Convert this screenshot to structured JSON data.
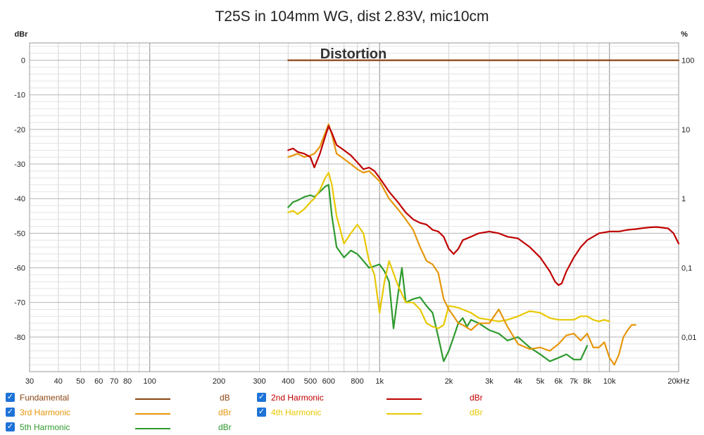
{
  "chart_data": {
    "type": "line",
    "title": "T25S in 104mm WG, dist 2.83V, mic10cm",
    "annotation": "Distortion",
    "x_axis": {
      "scale": "log",
      "range": [
        30,
        20000
      ],
      "tick_labels": [
        {
          "v": 30,
          "label": "30"
        },
        {
          "v": 40,
          "label": "40"
        },
        {
          "v": 50,
          "label": "50"
        },
        {
          "v": 60,
          "label": "60"
        },
        {
          "v": 70,
          "label": "70"
        },
        {
          "v": 80,
          "label": "80"
        },
        {
          "v": 100,
          "label": "100"
        },
        {
          "v": 200,
          "label": "200"
        },
        {
          "v": 300,
          "label": "300"
        },
        {
          "v": 400,
          "label": "400"
        },
        {
          "v": 500,
          "label": "500"
        },
        {
          "v": 600,
          "label": "600"
        },
        {
          "v": 800,
          "label": "800"
        },
        {
          "v": 1000,
          "label": "1k"
        },
        {
          "v": 2000,
          "label": "2k"
        },
        {
          "v": 3000,
          "label": "3k"
        },
        {
          "v": 4000,
          "label": "4k"
        },
        {
          "v": 5000,
          "label": "5k"
        },
        {
          "v": 6000,
          "label": "6k"
        },
        {
          "v": 7000,
          "label": "7k"
        },
        {
          "v": 8000,
          "label": "8k"
        },
        {
          "v": 10000,
          "label": "10k"
        },
        {
          "v": 20000,
          "label": "20kHz"
        }
      ]
    },
    "y_left": {
      "unit": "dBr",
      "range": [
        -90,
        5
      ],
      "ticks": [
        0,
        -10,
        -20,
        -30,
        -40,
        -50,
        -60,
        -70,
        -80
      ]
    },
    "y_right": {
      "unit": "%",
      "scale": "log",
      "tick_labels": [
        {
          "v": 100,
          "label": "100"
        },
        {
          "v": 10,
          "label": "10"
        },
        {
          "v": 1,
          "label": "1"
        },
        {
          "v": 0.1,
          "label": "0,1"
        },
        {
          "v": 0.01,
          "label": "0,01"
        }
      ]
    },
    "grid": true,
    "legend_position": "bottom",
    "series": [
      {
        "name": "Fundamental",
        "unit": "dB",
        "color": "#8b4513",
        "x": [
          400,
          20000
        ],
        "y": [
          0,
          0
        ]
      },
      {
        "name": "2nd Harmonic",
        "unit": "dBr",
        "color": "#c00000",
        "x": [
          400,
          420,
          440,
          470,
          500,
          520,
          550,
          580,
          600,
          620,
          650,
          700,
          750,
          800,
          850,
          900,
          950,
          1000,
          1100,
          1200,
          1300,
          1400,
          1500,
          1600,
          1700,
          1800,
          1900,
          2000,
          2100,
          2200,
          2300,
          2500,
          2700,
          3000,
          3300,
          3600,
          4000,
          4500,
          5000,
          5500,
          5800,
          6000,
          6200,
          6500,
          7000,
          7500,
          8000,
          9000,
          10000,
          11000,
          12000,
          13000,
          14000,
          15000,
          16000,
          17000,
          18000,
          19000,
          20000
        ],
        "y": [
          -26,
          -25.5,
          -26.5,
          -27,
          -28,
          -31,
          -27,
          -22,
          -19,
          -21,
          -24.5,
          -26,
          -27.5,
          -29.5,
          -31.5,
          -31,
          -32,
          -34,
          -38,
          -41,
          -44,
          -46,
          -47,
          -47.5,
          -49,
          -49.5,
          -51,
          -54.5,
          -56,
          -54.5,
          -52,
          -51,
          -50,
          -49.5,
          -50,
          -51,
          -51.5,
          -54,
          -57,
          -61,
          -64,
          -65,
          -64.5,
          -61,
          -57,
          -54,
          -52,
          -50,
          -49.5,
          -49.5,
          -49,
          -48.8,
          -48.5,
          -48.3,
          -48.2,
          -48.4,
          -48.6,
          -50,
          -53
        ]
      },
      {
        "name": "3rd Harmonic",
        "unit": "dBr",
        "color": "#e6960a",
        "x": [
          400,
          420,
          440,
          470,
          500,
          520,
          550,
          580,
          600,
          620,
          650,
          700,
          750,
          800,
          850,
          900,
          950,
          1000,
          1100,
          1200,
          1300,
          1400,
          1500,
          1600,
          1700,
          1800,
          1900,
          2000,
          2100,
          2200,
          2300,
          2500,
          2700,
          3000,
          3300,
          3600,
          4000,
          4500,
          5000,
          5500,
          6000,
          6500,
          7000,
          7500,
          8000,
          8500,
          9000,
          9500,
          10000,
          10500,
          11000,
          11500,
          12000,
          12500,
          13000
        ],
        "y": [
          -28,
          -27.5,
          -27,
          -28,
          -27.5,
          -27,
          -25,
          -21,
          -18.5,
          -21.5,
          -27,
          -28.5,
          -30,
          -31.5,
          -32.5,
          -32,
          -33.5,
          -35,
          -40,
          -43,
          -46,
          -49,
          -54,
          -58,
          -59,
          -61.5,
          -69,
          -72,
          -74,
          -76,
          -76.5,
          -78,
          -76,
          -76,
          -72,
          -77,
          -82,
          -83.5,
          -83,
          -84,
          -82,
          -79.5,
          -79,
          -81,
          -79,
          -83,
          -83,
          -81.5,
          -86,
          -88,
          -85,
          -80,
          -78,
          -76.5,
          -76.5
        ]
      },
      {
        "name": "4th Harmonic",
        "unit": "dBr",
        "color": "#e8c800",
        "x": [
          400,
          420,
          440,
          470,
          500,
          520,
          550,
          580,
          600,
          620,
          650,
          700,
          750,
          800,
          850,
          880,
          900,
          950,
          1000,
          1050,
          1100,
          1200,
          1300,
          1400,
          1500,
          1600,
          1700,
          1800,
          1900,
          2000,
          2200,
          2500,
          2700,
          3000,
          3300,
          3600,
          4000,
          4500,
          5000,
          5500,
          6000,
          6500,
          7000,
          7500,
          8000,
          8500,
          9000,
          9500,
          10000
        ],
        "y": [
          -44,
          -43.5,
          -44.5,
          -43,
          -41,
          -40,
          -37.5,
          -34,
          -32.5,
          -36,
          -45,
          -53,
          -50,
          -47.5,
          -50,
          -55,
          -58,
          -62,
          -73,
          -64,
          -58,
          -65,
          -70,
          -70,
          -72,
          -76,
          -77,
          -77.5,
          -76.5,
          -71,
          -71.5,
          -73,
          -74.5,
          -75,
          -75.5,
          -75,
          -74,
          -72.5,
          -73,
          -74.5,
          -75,
          -75,
          -75,
          -74,
          -74,
          -75,
          -75.5,
          -75,
          -75.5
        ]
      },
      {
        "name": "5th Harmonic",
        "unit": "dBr",
        "color": "#2e9a2e",
        "x": [
          400,
          420,
          440,
          470,
          500,
          520,
          550,
          580,
          600,
          620,
          650,
          700,
          750,
          800,
          850,
          900,
          950,
          1000,
          1050,
          1100,
          1150,
          1200,
          1250,
          1300,
          1400,
          1500,
          1600,
          1700,
          1800,
          1900,
          2000,
          2100,
          2200,
          2300,
          2400,
          2500,
          2700,
          3000,
          3300,
          3600,
          4000,
          4500,
          5000,
          5500,
          6000,
          6500,
          7000,
          7500,
          8000
        ],
        "y": [
          -42.5,
          -41,
          -40.5,
          -39.5,
          -39,
          -39.5,
          -38,
          -36.5,
          -36,
          -45,
          -54,
          -57,
          -55,
          -56,
          -58,
          -60,
          -59.5,
          -59,
          -61,
          -64,
          -77.5,
          -68,
          -60,
          -70,
          -69,
          -68.5,
          -71,
          -73,
          -80,
          -87,
          -84,
          -80,
          -76,
          -74.5,
          -77,
          -75,
          -76,
          -78,
          -79,
          -81,
          -80,
          -83,
          -85,
          -87,
          -86,
          -85,
          -86.5,
          -86.5,
          -82.5
        ]
      }
    ]
  }
}
